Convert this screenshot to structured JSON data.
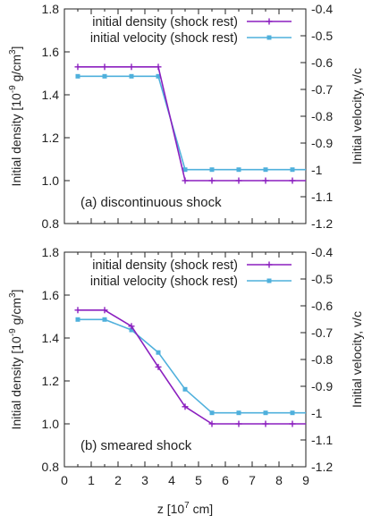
{
  "colors": {
    "density": "#8b1fbf",
    "velocity": "#4fb0dc",
    "frame": "#222222"
  },
  "chart_data": [
    {
      "type": "line",
      "annotation": "(a) discontinuous shock",
      "xlim": [
        0,
        9
      ],
      "ylim_left": [
        0.8,
        1.8
      ],
      "ylim_right": [
        -1.2,
        -0.4
      ],
      "ylabel": "Initial density [10^-9 g/cm^3]",
      "ylabel_right": "Initial velocity, v/c",
      "x_ticks": [
        "0",
        "0.5",
        "1",
        "1.5",
        "2",
        "2.5",
        "3",
        "3.5",
        "4",
        "4.5",
        "5",
        "5.5",
        "6",
        "6.5",
        "7",
        "7.5",
        "8",
        "8.5",
        "9"
      ],
      "y_ticks_left": [
        "0.8",
        "1.0",
        "1.2",
        "1.4",
        "1.6",
        "1.8"
      ],
      "y_ticks_right": [
        "-0.4",
        "-0.5",
        "-0.6",
        "-0.7",
        "-0.8",
        "-0.9",
        "-1",
        "-1.1",
        "-1.2"
      ],
      "series": [
        {
          "name": "initial density (shock rest)",
          "axis": "left",
          "marker": "plus",
          "x": [
            0.5,
            1.5,
            2.5,
            3.5,
            4.5,
            5.5,
            6.5,
            7.5,
            8.5,
            9
          ],
          "y": [
            1.53,
            1.53,
            1.53,
            1.53,
            1.0,
            1.0,
            1.0,
            1.0,
            1.0,
            1.0
          ]
        },
        {
          "name": "initial velocity (shock rest)",
          "axis": "right",
          "marker": "square",
          "x": [
            0.5,
            1.5,
            2.5,
            3.5,
            4.5,
            5.5,
            6.5,
            7.5,
            8.5,
            9
          ],
          "y": [
            -0.651,
            -0.651,
            -0.651,
            -0.651,
            -0.999,
            -0.999,
            -0.999,
            -0.999,
            -0.999,
            -0.999
          ]
        }
      ]
    },
    {
      "type": "line",
      "annotation": "(b) smeared shock",
      "xlim": [
        0,
        9
      ],
      "ylim_left": [
        0.8,
        1.8
      ],
      "ylim_right": [
        -1.2,
        -0.4
      ],
      "xlabel": "z [10^7 cm]",
      "ylabel": "Initial density [10^-9 g/cm^3]",
      "ylabel_right": "Initial velocity, v/c",
      "x_ticks": [
        "0",
        "0.5",
        "1",
        "1.5",
        "2",
        "2.5",
        "3",
        "3.5",
        "4",
        "4.5",
        "5",
        "5.5",
        "6",
        "6.5",
        "7",
        "7.5",
        "8",
        "8.5",
        "9"
      ],
      "y_ticks_left": [
        "0.8",
        "1.0",
        "1.2",
        "1.4",
        "1.6",
        "1.8"
      ],
      "y_ticks_right": [
        "-0.4",
        "-0.5",
        "-0.6",
        "-0.7",
        "-0.8",
        "-0.9",
        "-1",
        "-1.1",
        "-1.2"
      ],
      "series": [
        {
          "name": "initial density (shock rest)",
          "axis": "left",
          "marker": "plus",
          "x": [
            0.5,
            1.5,
            2.5,
            3.5,
            4.5,
            5.5,
            6.5,
            7.5,
            8.5,
            9
          ],
          "y": [
            1.53,
            1.53,
            1.455,
            1.265,
            1.08,
            1.0,
            1.0,
            1.0,
            1.0,
            1.0
          ]
        },
        {
          "name": "initial velocity (shock rest)",
          "axis": "right",
          "marker": "square",
          "x": [
            0.5,
            1.5,
            2.5,
            3.5,
            4.5,
            5.5,
            6.5,
            7.5,
            8.5,
            9
          ],
          "y": [
            -0.651,
            -0.651,
            -0.69,
            -0.774,
            -0.911,
            -0.999,
            -0.999,
            -0.999,
            -0.999,
            -0.999
          ]
        }
      ]
    }
  ]
}
